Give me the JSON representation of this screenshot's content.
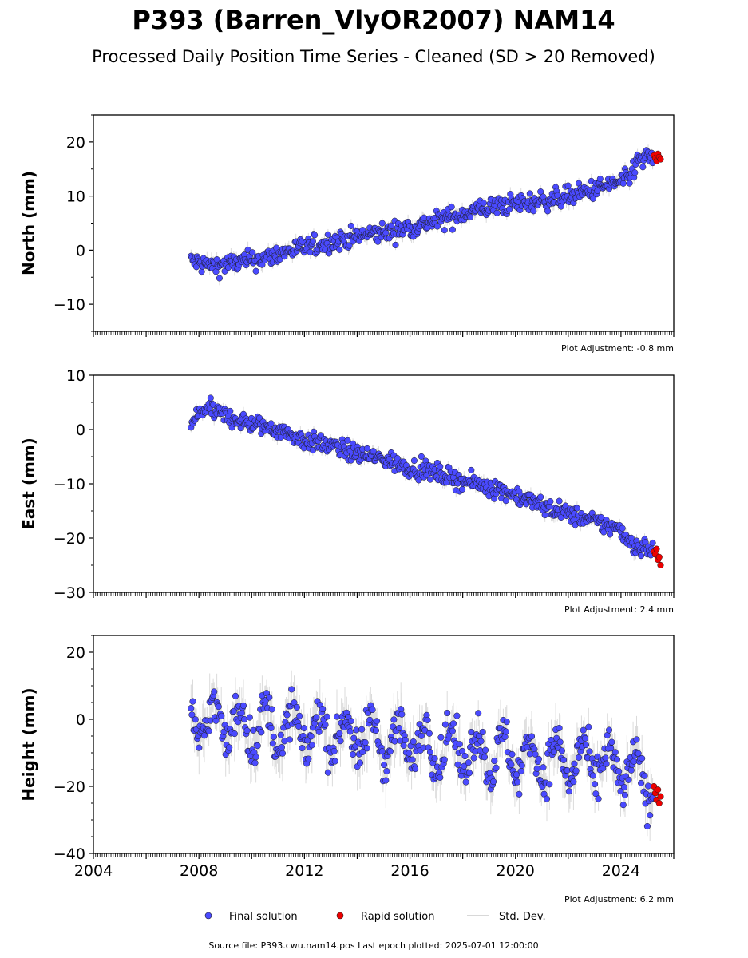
{
  "header": {
    "title": "P393 (Barren_VlyOR2007) NAM14",
    "subtitle": "Processed Daily Position Time Series - Cleaned (SD > 20 Removed)"
  },
  "legend": {
    "final": "Final solution",
    "rapid": "Rapid solution",
    "std": "Std. Dev.",
    "final_color": "#4a4aff",
    "rapid_color": "#ee0000",
    "std_color": "#bbbbbb"
  },
  "footer": {
    "source": "Source file: P393.cwu.nam14.pos  Last epoch plotted: 2025-07-01 12:00:00"
  },
  "chart_data": [
    {
      "type": "scatter",
      "component": "north",
      "ylabel": "North (mm)",
      "xlim": [
        2004,
        2026
      ],
      "ylim": [
        -15,
        25
      ],
      "yticks": [
        -10,
        0,
        10,
        20
      ],
      "xticks": [],
      "adjustment": "Plot Adjustment: -0.8 mm",
      "noise": 1.3,
      "series": [
        {
          "name": "Final solution",
          "color": "#4a4aff",
          "x": [
            2007.7,
            2008.5,
            2009.5,
            2010.5,
            2011.5,
            2012.5,
            2013.5,
            2014.5,
            2015.5,
            2016.5,
            2017.5,
            2018.5,
            2019.5,
            2020.5,
            2021.5,
            2022.5,
            2023.5,
            2024.3,
            2024.6,
            2025.2
          ],
          "y": [
            -2.0,
            -3.0,
            -2.3,
            -1.5,
            0.0,
            1.0,
            2.0,
            3.0,
            3.6,
            4.8,
            6.0,
            7.5,
            8.3,
            8.8,
            9.5,
            10.5,
            12.0,
            13.0,
            16.5,
            17.0
          ]
        },
        {
          "name": "Rapid solution",
          "color": "#ee0000",
          "x": [
            2025.25,
            2025.3,
            2025.35,
            2025.4,
            2025.45,
            2025.5
          ],
          "y": [
            17.5,
            17.0,
            16.5,
            17.8,
            17.2,
            16.8
          ]
        }
      ]
    },
    {
      "type": "scatter",
      "component": "east",
      "ylabel": "East (mm)",
      "xlim": [
        2004,
        2026
      ],
      "ylim": [
        -30,
        10
      ],
      "yticks": [
        -30,
        -20,
        -10,
        0,
        10
      ],
      "xticks": [],
      "adjustment": "Plot Adjustment: 2.4 mm",
      "noise": 1.2,
      "series": [
        {
          "name": "Final solution",
          "color": "#4a4aff",
          "x": [
            2007.7,
            2008.2,
            2009.0,
            2010.0,
            2011.0,
            2012.0,
            2013.0,
            2014.0,
            2015.0,
            2016.0,
            2017.0,
            2018.0,
            2019.0,
            2020.0,
            2021.0,
            2022.0,
            2023.0,
            2024.0,
            2024.5,
            2025.2
          ],
          "y": [
            1.0,
            4.0,
            2.5,
            1.0,
            0.0,
            -2.0,
            -3.0,
            -4.5,
            -5.5,
            -7.0,
            -8.0,
            -9.5,
            -10.5,
            -12.0,
            -14.0,
            -15.5,
            -17.0,
            -18.5,
            -21.5,
            -22.0
          ]
        },
        {
          "name": "Rapid solution",
          "color": "#ee0000",
          "x": [
            2025.25,
            2025.3,
            2025.35,
            2025.4,
            2025.45,
            2025.5
          ],
          "y": [
            -22.5,
            -23.0,
            -22.0,
            -24.0,
            -23.5,
            -25.0
          ]
        }
      ]
    },
    {
      "type": "scatter",
      "component": "height",
      "ylabel": "Height (mm)",
      "xlim": [
        2004,
        2026
      ],
      "ylim": [
        -40,
        25
      ],
      "yticks": [
        -40,
        -20,
        0,
        20
      ],
      "xticks": [
        "2004",
        "2008",
        "2012",
        "2016",
        "2020",
        "2024"
      ],
      "adjustment": "Plot Adjustment: 6.2 mm",
      "noise": 4.5,
      "seasonal_amplitude_mm": 6,
      "series": [
        {
          "name": "Final solution",
          "color": "#4a4aff",
          "x": [
            2007.7,
            2009.0,
            2011.0,
            2013.0,
            2015.0,
            2017.0,
            2019.0,
            2021.0,
            2023.0,
            2024.5,
            2025.2
          ],
          "y": [
            0.0,
            -1.0,
            -3.0,
            -4.0,
            -6.0,
            -8.0,
            -10.0,
            -12.0,
            -13.0,
            -16.0,
            -20.0
          ]
        },
        {
          "name": "Rapid solution",
          "color": "#ee0000",
          "x": [
            2025.25,
            2025.3,
            2025.35,
            2025.4,
            2025.45,
            2025.5
          ],
          "y": [
            -20.0,
            -22.0,
            -24.0,
            -21.0,
            -25.0,
            -23.0
          ]
        }
      ]
    }
  ]
}
